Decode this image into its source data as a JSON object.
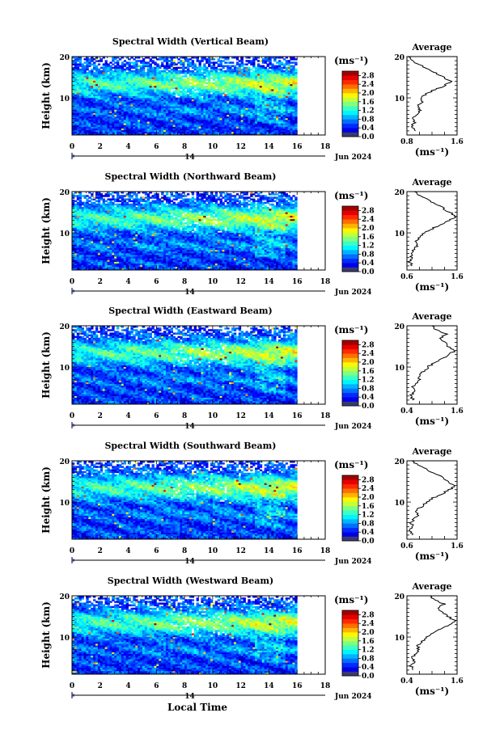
{
  "figure": {
    "xlabel": "Local Time",
    "ylabel": "Height (km)",
    "day_label": "14",
    "month_label": "Jun 2024",
    "units": "(ms⁻¹)",
    "avg_title": "Average",
    "avg_xlabel": "(ms⁻¹)"
  },
  "chart_data": [
    {
      "type": "heatmap",
      "title": "Spectral Width (Vertical Beam)",
      "x_ticks": [
        0,
        2,
        4,
        6,
        8,
        10,
        12,
        14,
        16,
        18
      ],
      "xlim": [
        0,
        18
      ],
      "y_ticks": [
        10,
        20
      ],
      "ylim": [
        1,
        20
      ],
      "data_end_hour": 16,
      "colorbar_ticks": [
        "2.8",
        "2.4",
        "2.0",
        "1.6",
        "1.2",
        "0.8",
        "0.4",
        "0.0"
      ],
      "colorbar_range": [
        0,
        3
      ],
      "average": {
        "title": "Average",
        "xlim": [
          0.8,
          1.6
        ],
        "x_tick_labels": [
          "0.8",
          "1.6"
        ],
        "profile": [
          [
            2,
            0.95
          ],
          [
            3,
            0.88
          ],
          [
            4,
            0.92
          ],
          [
            5,
            0.9
          ],
          [
            6,
            0.95
          ],
          [
            7,
            1.0
          ],
          [
            8,
            0.98
          ],
          [
            9,
            1.05
          ],
          [
            10,
            1.02
          ],
          [
            11,
            1.1
          ],
          [
            12,
            1.25
          ],
          [
            13,
            1.4
          ],
          [
            14,
            1.5
          ],
          [
            15,
            1.38
          ],
          [
            16,
            1.25
          ],
          [
            17,
            1.15
          ],
          [
            18,
            1.0
          ],
          [
            19,
            0.88
          ],
          [
            20,
            0.82
          ]
        ]
      }
    },
    {
      "type": "heatmap",
      "title": "Spectral Width (Northward Beam)",
      "x_ticks": [
        0,
        2,
        4,
        6,
        8,
        10,
        12,
        14,
        16,
        18
      ],
      "xlim": [
        0,
        18
      ],
      "y_ticks": [
        10,
        20
      ],
      "ylim": [
        1,
        20
      ],
      "data_end_hour": 16,
      "colorbar_ticks": [
        "2.8",
        "2.4",
        "2.0",
        "1.6",
        "1.2",
        "0.8",
        "0.4",
        "0.0"
      ],
      "colorbar_range": [
        0,
        3
      ],
      "average": {
        "title": "Average",
        "xlim": [
          0.6,
          1.6
        ],
        "x_tick_labels": [
          "0.6",
          "1.6"
        ],
        "profile": [
          [
            2,
            0.72
          ],
          [
            3,
            0.65
          ],
          [
            4,
            0.7
          ],
          [
            5,
            0.68
          ],
          [
            6,
            0.75
          ],
          [
            7,
            0.8
          ],
          [
            8,
            0.78
          ],
          [
            9,
            0.85
          ],
          [
            10,
            0.95
          ],
          [
            11,
            1.1
          ],
          [
            12,
            1.28
          ],
          [
            13,
            1.45
          ],
          [
            14,
            1.58
          ],
          [
            15,
            1.45
          ],
          [
            16,
            1.32
          ],
          [
            17,
            1.18
          ],
          [
            18,
            1.02
          ],
          [
            19,
            0.85
          ],
          [
            20,
            0.75
          ]
        ]
      }
    },
    {
      "type": "heatmap",
      "title": "Spectral Width (Eastward Beam)",
      "x_ticks": [
        0,
        2,
        4,
        6,
        8,
        10,
        12,
        14,
        16,
        18
      ],
      "xlim": [
        0,
        18
      ],
      "y_ticks": [
        10,
        20
      ],
      "ylim": [
        1,
        20
      ],
      "data_end_hour": 16,
      "colorbar_ticks": [
        "2.8",
        "2.4",
        "2.0",
        "1.6",
        "1.2",
        "0.8",
        "0.4",
        "0.0"
      ],
      "colorbar_range": [
        0,
        3
      ],
      "average": {
        "title": "Average",
        "xlim": [
          0.4,
          1.6
        ],
        "x_tick_labels": [
          "0.4",
          "1.6"
        ],
        "profile": [
          [
            2,
            0.55
          ],
          [
            3,
            0.5
          ],
          [
            4,
            0.58
          ],
          [
            5,
            0.52
          ],
          [
            6,
            0.62
          ],
          [
            7,
            0.7
          ],
          [
            8,
            0.68
          ],
          [
            9,
            0.8
          ],
          [
            10,
            0.9
          ],
          [
            11,
            1.05
          ],
          [
            12,
            1.25
          ],
          [
            13,
            1.42
          ],
          [
            14,
            1.55
          ],
          [
            15,
            1.4
          ],
          [
            16,
            1.3
          ],
          [
            17,
            1.2
          ],
          [
            18,
            1.35
          ],
          [
            19,
            1.1
          ],
          [
            20,
            1.0
          ]
        ]
      }
    },
    {
      "type": "heatmap",
      "title": "Spectral Width (Southward Beam)",
      "x_ticks": [
        0,
        2,
        4,
        6,
        8,
        10,
        12,
        14,
        16,
        18
      ],
      "xlim": [
        0,
        18
      ],
      "y_ticks": [
        10,
        20
      ],
      "ylim": [
        1,
        20
      ],
      "data_end_hour": 16,
      "colorbar_ticks": [
        "2.8",
        "2.4",
        "2.0",
        "1.6",
        "1.2",
        "0.8",
        "0.4",
        "0.0"
      ],
      "colorbar_range": [
        0,
        3
      ],
      "average": {
        "title": "Average",
        "xlim": [
          0.6,
          1.6
        ],
        "x_tick_labels": [
          "0.6",
          "1.6"
        ],
        "profile": [
          [
            2,
            0.72
          ],
          [
            3,
            0.66
          ],
          [
            4,
            0.72
          ],
          [
            5,
            0.68
          ],
          [
            6,
            0.76
          ],
          [
            7,
            0.82
          ],
          [
            8,
            0.8
          ],
          [
            9,
            0.9
          ],
          [
            10,
            1.0
          ],
          [
            11,
            1.12
          ],
          [
            12,
            1.3
          ],
          [
            13,
            1.45
          ],
          [
            14,
            1.55
          ],
          [
            15,
            1.42
          ],
          [
            16,
            1.3
          ],
          [
            17,
            1.15
          ],
          [
            18,
            0.98
          ],
          [
            19,
            0.8
          ],
          [
            20,
            0.7
          ]
        ]
      }
    },
    {
      "type": "heatmap",
      "title": "Spectral Width (Westward Beam)",
      "x_ticks": [
        0,
        2,
        4,
        6,
        8,
        10,
        12,
        14,
        16,
        18
      ],
      "xlim": [
        0,
        18
      ],
      "y_ticks": [
        10,
        20
      ],
      "ylim": [
        1,
        20
      ],
      "data_end_hour": 16,
      "colorbar_ticks": [
        "2.8",
        "2.4",
        "2.0",
        "1.6",
        "1.2",
        "0.8",
        "0.4",
        "0.0"
      ],
      "colorbar_range": [
        0,
        3
      ],
      "average": {
        "title": "Average",
        "xlim": [
          0.4,
          1.6
        ],
        "x_tick_labels": [
          "0.4",
          "1.6"
        ],
        "profile": [
          [
            2,
            0.55
          ],
          [
            3,
            0.5
          ],
          [
            4,
            0.56
          ],
          [
            5,
            0.52
          ],
          [
            6,
            0.6
          ],
          [
            7,
            0.68
          ],
          [
            8,
            0.66
          ],
          [
            9,
            0.78
          ],
          [
            10,
            0.88
          ],
          [
            11,
            1.02
          ],
          [
            12,
            1.22
          ],
          [
            13,
            1.4
          ],
          [
            14,
            1.55
          ],
          [
            15,
            1.38
          ],
          [
            16,
            1.25
          ],
          [
            17,
            1.15
          ],
          [
            18,
            1.3
          ],
          [
            19,
            1.05
          ],
          [
            20,
            0.95
          ]
        ]
      }
    }
  ]
}
